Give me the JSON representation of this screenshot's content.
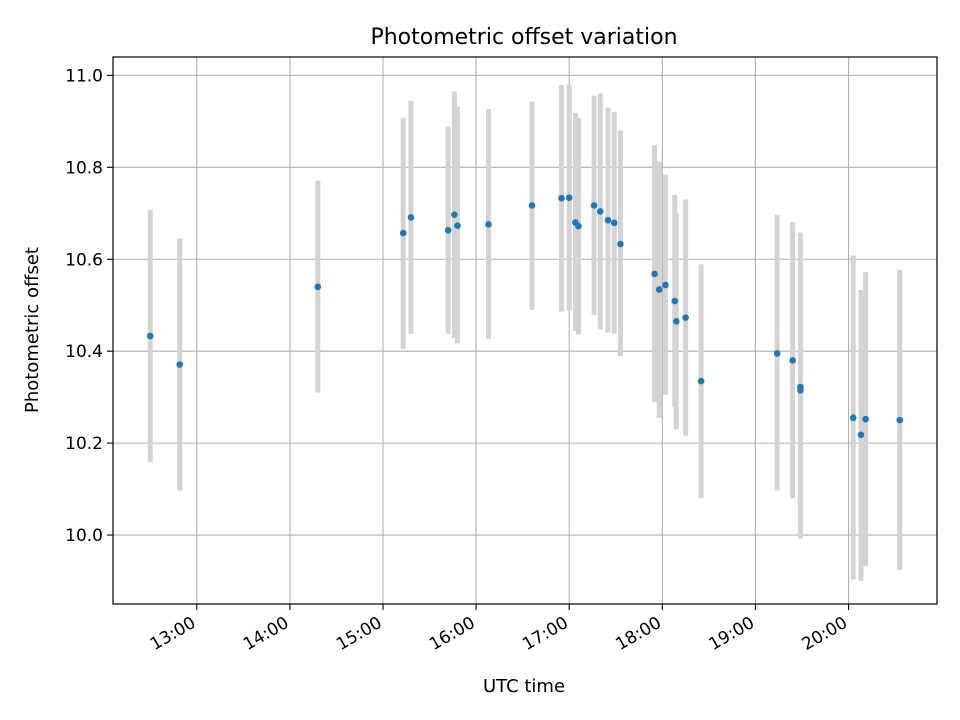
{
  "chart_data": {
    "type": "scatter",
    "title": "Photometric offset variation",
    "xlabel": "UTC time",
    "ylabel": "Photometric offset",
    "x_tick_labels": [
      "13:00",
      "14:00",
      "15:00",
      "16:00",
      "17:00",
      "18:00",
      "19:00",
      "20:00"
    ],
    "y_tick_labels": [
      "10.0",
      "10.2",
      "10.4",
      "10.6",
      "10.8",
      "11.0"
    ],
    "xlim": [
      "12:06",
      "20:57"
    ],
    "ylim": [
      9.85,
      11.04
    ],
    "grid": true,
    "colors": {
      "point": "#1f77b4",
      "error_bar": "#d3d3d3",
      "grid": "#b0b0b0"
    },
    "points": [
      {
        "x": "12:30",
        "y": 10.433,
        "ylow": 10.158,
        "yhigh": 10.708
      },
      {
        "x": "12:49",
        "y": 10.371,
        "ylow": 10.097,
        "yhigh": 10.645
      },
      {
        "x": "14:18",
        "y": 10.54,
        "ylow": 10.31,
        "yhigh": 10.771
      },
      {
        "x": "15:13",
        "y": 10.657,
        "ylow": 10.405,
        "yhigh": 10.908
      },
      {
        "x": "15:18",
        "y": 10.691,
        "ylow": 10.438,
        "yhigh": 10.945
      },
      {
        "x": "15:42",
        "y": 10.663,
        "ylow": 10.438,
        "yhigh": 10.889
      },
      {
        "x": "15:46",
        "y": 10.697,
        "ylow": 10.428,
        "yhigh": 10.965
      },
      {
        "x": "15:48",
        "y": 10.673,
        "ylow": 10.417,
        "yhigh": 10.932
      },
      {
        "x": "16:08",
        "y": 10.676,
        "ylow": 10.427,
        "yhigh": 10.927
      },
      {
        "x": "16:36",
        "y": 10.717,
        "ylow": 10.49,
        "yhigh": 10.943
      },
      {
        "x": "16:55",
        "y": 10.733,
        "ylow": 10.486,
        "yhigh": 10.979
      },
      {
        "x": "17:00",
        "y": 10.734,
        "ylow": 10.489,
        "yhigh": 10.98
      },
      {
        "x": "17:04",
        "y": 10.68,
        "ylow": 10.444,
        "yhigh": 10.918
      },
      {
        "x": "17:06",
        "y": 10.672,
        "ylow": 10.436,
        "yhigh": 10.907
      },
      {
        "x": "17:16",
        "y": 10.717,
        "ylow": 10.479,
        "yhigh": 10.956
      },
      {
        "x": "17:20",
        "y": 10.704,
        "ylow": 10.447,
        "yhigh": 10.961
      },
      {
        "x": "17:25",
        "y": 10.685,
        "ylow": 10.441,
        "yhigh": 10.93
      },
      {
        "x": "17:29",
        "y": 10.679,
        "ylow": 10.438,
        "yhigh": 10.92
      },
      {
        "x": "17:33",
        "y": 10.633,
        "ylow": 10.389,
        "yhigh": 10.88
      },
      {
        "x": "17:55",
        "y": 10.568,
        "ylow": 10.289,
        "yhigh": 10.848
      },
      {
        "x": "17:58",
        "y": 10.534,
        "ylow": 10.255,
        "yhigh": 10.813
      },
      {
        "x": "18:02",
        "y": 10.544,
        "ylow": 10.305,
        "yhigh": 10.784
      },
      {
        "x": "18:08",
        "y": 10.509,
        "ylow": 10.278,
        "yhigh": 10.74
      },
      {
        "x": "18:09",
        "y": 10.465,
        "ylow": 10.23,
        "yhigh": 10.699
      },
      {
        "x": "18:15",
        "y": 10.473,
        "ylow": 10.216,
        "yhigh": 10.73
      },
      {
        "x": "18:25",
        "y": 10.335,
        "ylow": 10.08,
        "yhigh": 10.589
      },
      {
        "x": "19:14",
        "y": 10.395,
        "ylow": 10.097,
        "yhigh": 10.697
      },
      {
        "x": "19:24",
        "y": 10.38,
        "ylow": 10.08,
        "yhigh": 10.681
      },
      {
        "x": "19:29",
        "y": 10.322,
        "ylow": 9.993,
        "yhigh": 10.658
      },
      {
        "x": "19:29",
        "y": 10.315,
        "ylow": 9.993,
        "yhigh": 10.65
      },
      {
        "x": "20:03",
        "y": 10.255,
        "ylow": 9.903,
        "yhigh": 10.608
      },
      {
        "x": "20:08",
        "y": 10.218,
        "ylow": 9.9,
        "yhigh": 10.533
      },
      {
        "x": "20:11",
        "y": 10.252,
        "ylow": 9.933,
        "yhigh": 10.572
      },
      {
        "x": "20:33",
        "y": 10.25,
        "ylow": 9.924,
        "yhigh": 10.577
      }
    ]
  }
}
